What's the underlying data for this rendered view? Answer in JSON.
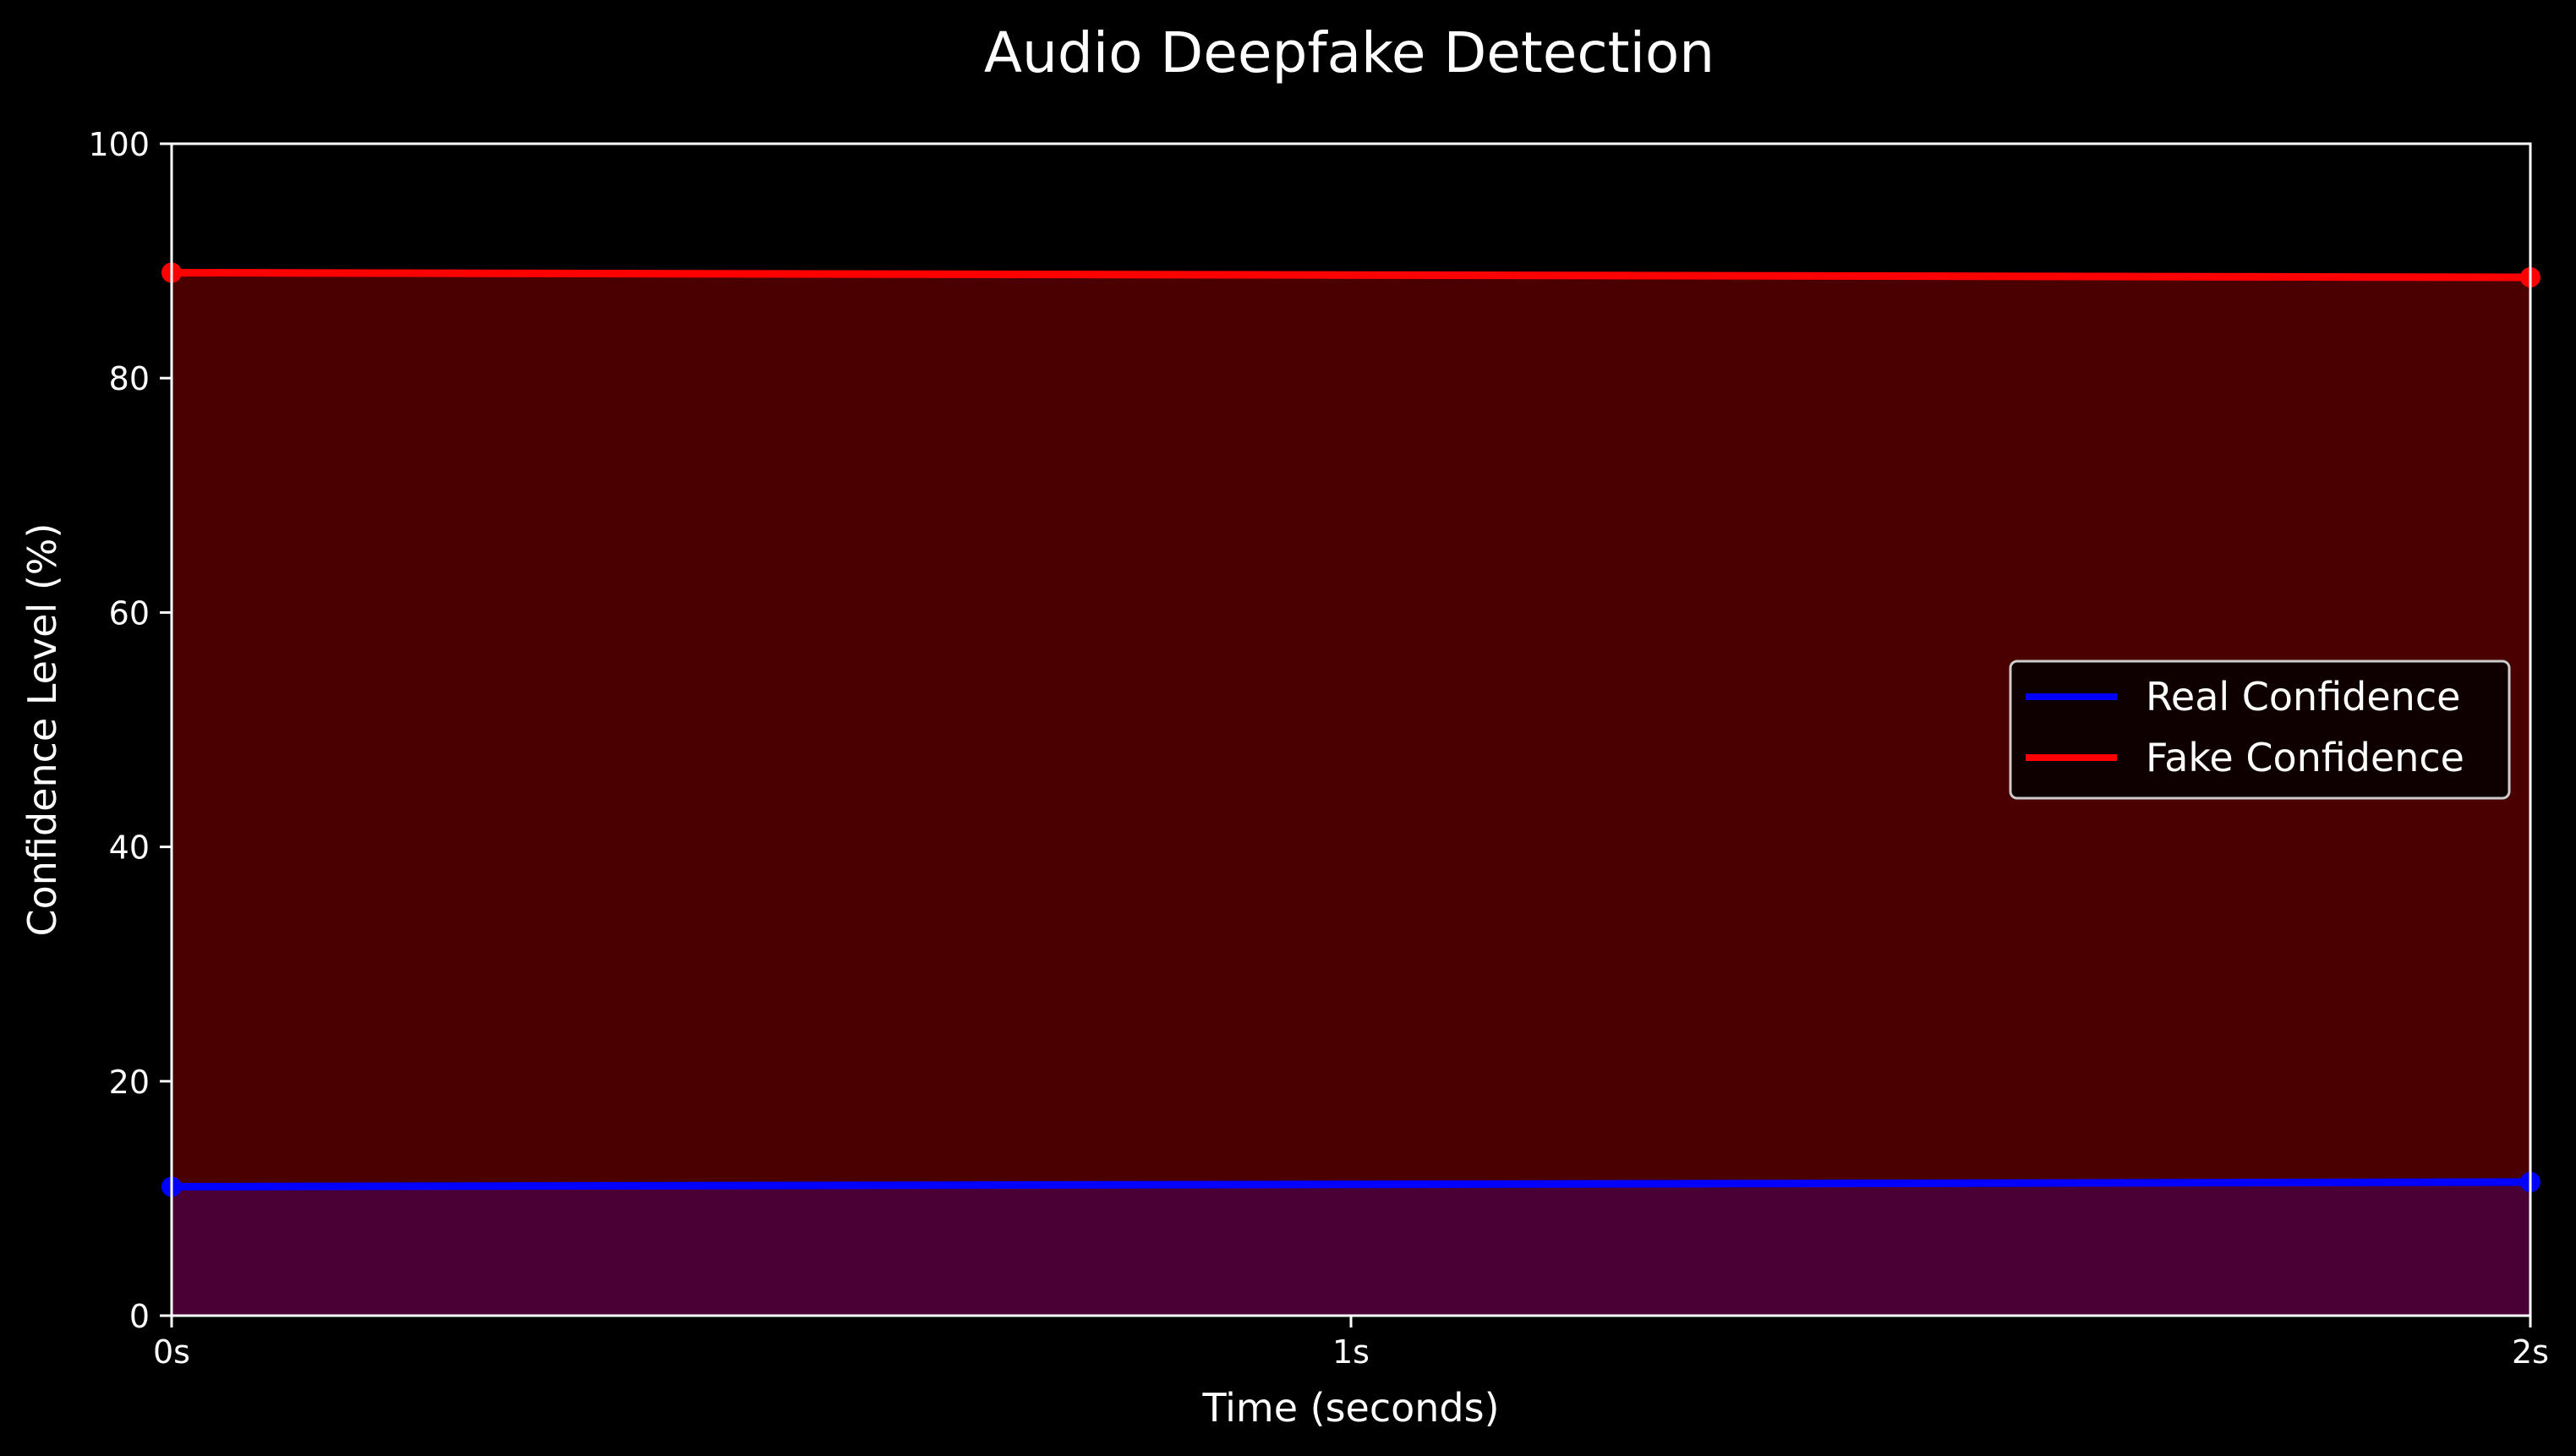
{
  "chart_data": {
    "type": "area",
    "title": "Audio Deepfake Detection",
    "xlabel": "Time (seconds)",
    "ylabel": "Confidence Level (%)",
    "x": [
      0,
      2
    ],
    "x_ticks": [
      0,
      1,
      2
    ],
    "x_tick_labels": [
      "0s",
      "1s",
      "2s"
    ],
    "xlim": [
      0,
      2
    ],
    "y_ticks": [
      0,
      20,
      40,
      60,
      80,
      100
    ],
    "y_tick_labels": [
      "0",
      "20",
      "40",
      "60",
      "80",
      "100"
    ],
    "ylim": [
      0,
      100
    ],
    "grid": false,
    "legend_position": "center-right",
    "series": [
      {
        "name": "Real Confidence",
        "color": "#0000ff",
        "fill": "#4a0033",
        "values": [
          11.0,
          11.4
        ]
      },
      {
        "name": "Fake Confidence",
        "color": "#ff0000",
        "fill": "#4b0000",
        "values": [
          89.0,
          88.6
        ]
      }
    ]
  }
}
